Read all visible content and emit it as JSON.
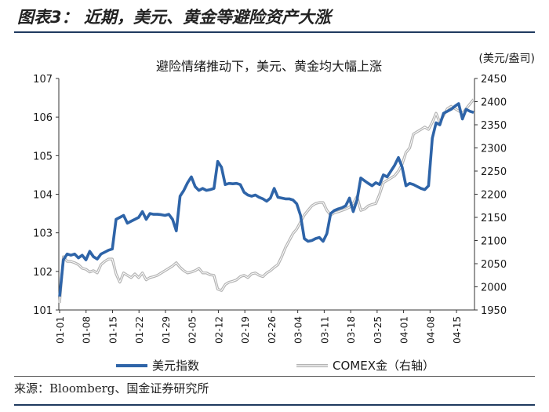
{
  "figure": {
    "title": "图表3：  近期，美元、黄金等避险资产大涨",
    "source": "来源：Bloomberg、国金证券研究所"
  },
  "chart_data": {
    "type": "line",
    "title": "避险情绪推动下，美元、黄金均大幅上涨",
    "y2_unit": "(美元/盎司)",
    "x_ticks": [
      "01-01",
      "01-08",
      "01-15",
      "01-22",
      "01-29",
      "02-05",
      "02-12",
      "02-19",
      "02-26",
      "03-04",
      "03-11",
      "03-18",
      "03-25",
      "04-01",
      "04-08",
      "04-15"
    ],
    "y_left": {
      "min": 101,
      "max": 107,
      "ticks": [
        101,
        102,
        103,
        104,
        105,
        106,
        107
      ]
    },
    "y_right": {
      "min": 1950,
      "max": 2450,
      "ticks": [
        1950,
        2000,
        2050,
        2100,
        2150,
        2200,
        2250,
        2300,
        2350,
        2400,
        2450
      ]
    },
    "legend_position": "bottom",
    "series": [
      {
        "name": "美元指数",
        "axis": "left",
        "color": "#2e64a8",
        "points": [
          [
            0,
            101.35
          ],
          [
            1,
            102.3
          ],
          [
            2,
            102.45
          ],
          [
            3,
            102.42
          ],
          [
            4,
            102.45
          ],
          [
            5,
            102.35
          ],
          [
            6,
            102.42
          ],
          [
            7,
            102.3
          ],
          [
            8,
            102.52
          ],
          [
            9,
            102.38
          ],
          [
            10,
            102.32
          ],
          [
            11,
            102.45
          ],
          [
            12,
            102.5
          ],
          [
            13,
            102.55
          ],
          [
            14,
            102.58
          ],
          [
            15,
            103.35
          ],
          [
            16,
            103.4
          ],
          [
            17,
            103.45
          ],
          [
            18,
            103.25
          ],
          [
            19,
            103.3
          ],
          [
            20,
            103.35
          ],
          [
            21,
            103.4
          ],
          [
            22,
            103.55
          ],
          [
            23,
            103.35
          ],
          [
            24,
            103.5
          ],
          [
            25,
            103.48
          ],
          [
            26,
            103.48
          ],
          [
            27,
            103.47
          ],
          [
            28,
            103.45
          ],
          [
            29,
            103.48
          ],
          [
            30,
            103.35
          ],
          [
            31,
            103.05
          ],
          [
            32,
            103.95
          ],
          [
            33,
            104.1
          ],
          [
            34,
            104.3
          ],
          [
            35,
            104.45
          ],
          [
            36,
            104.2
          ],
          [
            37,
            104.1
          ],
          [
            38,
            104.15
          ],
          [
            39,
            104.1
          ],
          [
            40,
            104.12
          ],
          [
            41,
            104.15
          ],
          [
            42,
            104.85
          ],
          [
            43,
            104.7
          ],
          [
            44,
            104.25
          ],
          [
            45,
            104.28
          ],
          [
            46,
            104.27
          ],
          [
            47,
            104.28
          ],
          [
            48,
            104.25
          ],
          [
            49,
            104.05
          ],
          [
            50,
            103.98
          ],
          [
            51,
            103.95
          ],
          [
            52,
            103.98
          ],
          [
            53,
            103.92
          ],
          [
            54,
            103.88
          ],
          [
            55,
            103.82
          ],
          [
            56,
            103.9
          ],
          [
            57,
            104.15
          ],
          [
            58,
            103.92
          ],
          [
            59,
            103.9
          ],
          [
            60,
            103.88
          ],
          [
            61,
            103.88
          ],
          [
            62,
            103.85
          ],
          [
            63,
            103.75
          ],
          [
            64,
            103.45
          ],
          [
            65,
            102.85
          ],
          [
            66,
            102.78
          ],
          [
            67,
            102.8
          ],
          [
            68,
            102.85
          ],
          [
            69,
            102.88
          ],
          [
            70,
            102.78
          ],
          [
            71,
            102.98
          ],
          [
            72,
            103.5
          ],
          [
            73,
            103.58
          ],
          [
            74,
            103.62
          ],
          [
            75,
            103.65
          ],
          [
            76,
            103.7
          ],
          [
            77,
            103.9
          ],
          [
            78,
            103.55
          ],
          [
            79,
            103.85
          ],
          [
            80,
            104.42
          ],
          [
            81,
            104.35
          ],
          [
            82,
            104.28
          ],
          [
            83,
            104.22
          ],
          [
            84,
            104.3
          ],
          [
            85,
            104.25
          ],
          [
            86,
            104.5
          ],
          [
            87,
            104.45
          ],
          [
            88,
            104.6
          ],
          [
            89,
            104.75
          ],
          [
            90,
            104.95
          ],
          [
            91,
            104.7
          ],
          [
            92,
            104.22
          ],
          [
            93,
            104.28
          ],
          [
            94,
            104.25
          ],
          [
            95,
            104.2
          ],
          [
            96,
            104.15
          ],
          [
            97,
            104.12
          ],
          [
            98,
            104.22
          ],
          [
            99,
            105.45
          ],
          [
            100,
            105.85
          ],
          [
            101,
            105.8
          ],
          [
            102,
            106.1
          ],
          [
            103,
            106.15
          ],
          [
            104,
            106.2
          ],
          [
            105,
            106.28
          ],
          [
            106,
            106.35
          ],
          [
            107,
            105.95
          ],
          [
            108,
            106.2
          ],
          [
            109,
            106.15
          ],
          [
            110,
            106.12
          ]
        ]
      },
      {
        "name": "COMEX金（右轴）",
        "axis": "right",
        "color": "#b3b3b3",
        "points": [
          [
            0,
            1965
          ],
          [
            1,
            2065
          ],
          [
            2,
            2055
          ],
          [
            3,
            2055
          ],
          [
            4,
            2052
          ],
          [
            5,
            2048
          ],
          [
            6,
            2040
          ],
          [
            7,
            2038
          ],
          [
            8,
            2032
          ],
          [
            9,
            2035
          ],
          [
            10,
            2030
          ],
          [
            11,
            2048
          ],
          [
            12,
            2055
          ],
          [
            13,
            2060
          ],
          [
            14,
            2060
          ],
          [
            15,
            2028
          ],
          [
            16,
            2010
          ],
          [
            17,
            2030
          ],
          [
            18,
            2025
          ],
          [
            19,
            2020
          ],
          [
            20,
            2028
          ],
          [
            21,
            2020
          ],
          [
            22,
            2030
          ],
          [
            23,
            2015
          ],
          [
            24,
            2020
          ],
          [
            25,
            2022
          ],
          [
            26,
            2025
          ],
          [
            27,
            2030
          ],
          [
            28,
            2035
          ],
          [
            29,
            2040
          ],
          [
            30,
            2045
          ],
          [
            31,
            2052
          ],
          [
            32,
            2042
          ],
          [
            33,
            2035
          ],
          [
            34,
            2030
          ],
          [
            35,
            2032
          ],
          [
            36,
            2035
          ],
          [
            37,
            2040
          ],
          [
            38,
            2030
          ],
          [
            39,
            2030
          ],
          [
            40,
            2026
          ],
          [
            41,
            2025
          ],
          [
            42,
            1995
          ],
          [
            43,
            1992
          ],
          [
            44,
            2005
          ],
          [
            45,
            2010
          ],
          [
            46,
            2012
          ],
          [
            47,
            2015
          ],
          [
            48,
            2022
          ],
          [
            49,
            2025
          ],
          [
            50,
            2020
          ],
          [
            51,
            2028
          ],
          [
            52,
            2030
          ],
          [
            53,
            2025
          ],
          [
            54,
            2022
          ],
          [
            55,
            2030
          ],
          [
            56,
            2035
          ],
          [
            57,
            2042
          ],
          [
            58,
            2048
          ],
          [
            59,
            2065
          ],
          [
            60,
            2085
          ],
          [
            61,
            2100
          ],
          [
            62,
            2115
          ],
          [
            63,
            2125
          ],
          [
            64,
            2140
          ],
          [
            65,
            2155
          ],
          [
            66,
            2165
          ],
          [
            67,
            2175
          ],
          [
            68,
            2180
          ],
          [
            69,
            2182
          ],
          [
            70,
            2182
          ],
          [
            71,
            2165
          ],
          [
            72,
            2155
          ],
          [
            73,
            2160
          ],
          [
            74,
            2162
          ],
          [
            75,
            2165
          ],
          [
            76,
            2168
          ],
          [
            77,
            2172
          ],
          [
            78,
            2180
          ],
          [
            79,
            2195
          ],
          [
            80,
            2165
          ],
          [
            81,
            2168
          ],
          [
            82,
            2175
          ],
          [
            83,
            2178
          ],
          [
            84,
            2180
          ],
          [
            85,
            2200
          ],
          [
            86,
            2225
          ],
          [
            87,
            2230
          ],
          [
            88,
            2235
          ],
          [
            89,
            2240
          ],
          [
            90,
            2250
          ],
          [
            91,
            2265
          ],
          [
            92,
            2290
          ],
          [
            93,
            2300
          ],
          [
            94,
            2330
          ],
          [
            95,
            2335
          ],
          [
            96,
            2340
          ],
          [
            97,
            2345
          ],
          [
            98,
            2340
          ],
          [
            99,
            2355
          ],
          [
            100,
            2375
          ],
          [
            101,
            2355
          ],
          [
            102,
            2370
          ],
          [
            103,
            2385
          ],
          [
            104,
            2390
          ],
          [
            105,
            2385
          ],
          [
            106,
            2380
          ],
          [
            107,
            2375
          ],
          [
            108,
            2385
          ],
          [
            109,
            2395
          ],
          [
            110,
            2405
          ]
        ]
      }
    ]
  }
}
